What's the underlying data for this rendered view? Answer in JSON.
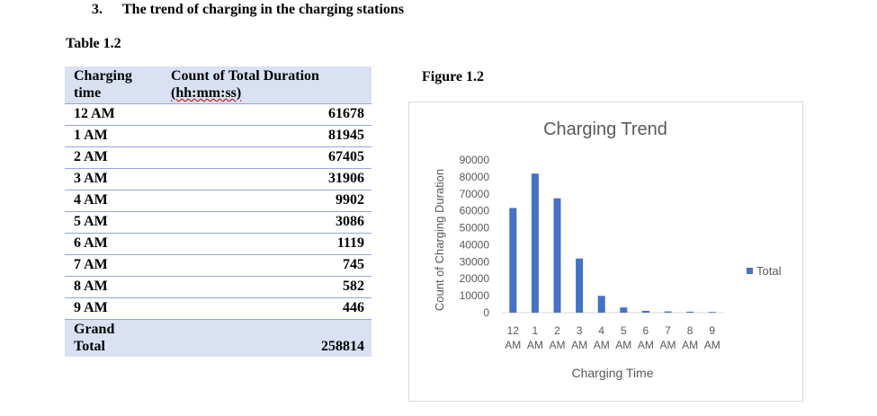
{
  "heading": {
    "number": "3.",
    "text": "The trend of charging in the charging stations"
  },
  "table": {
    "caption": "Table 1.2",
    "header": {
      "col1_line1": "Charging",
      "col1_line2": "time",
      "col2_line1": "Count of Total Duration",
      "col2_line2": "(hh:mm:ss)"
    },
    "rows": [
      {
        "label": "12 AM",
        "value": "61678"
      },
      {
        "label": "1 AM",
        "value": "81945"
      },
      {
        "label": "2 AM",
        "value": "67405"
      },
      {
        "label": "3 AM",
        "value": "31906"
      },
      {
        "label": "4 AM",
        "value": "9902"
      },
      {
        "label": "5 AM",
        "value": "3086"
      },
      {
        "label": "6 AM",
        "value": "1119"
      },
      {
        "label": "7 AM",
        "value": "745"
      },
      {
        "label": "8 AM",
        "value": "582"
      },
      {
        "label": "9 AM",
        "value": "446"
      }
    ],
    "total": {
      "label_line1": "Grand",
      "label_line2": "Total",
      "value": "258814"
    }
  },
  "figure": {
    "caption": "Figure 1.2"
  },
  "chart_data": {
    "type": "bar",
    "title": "Charging Trend",
    "xlabel": "Charging Time",
    "ylabel": "Count of Charging Duration",
    "categories": [
      "12 AM",
      "1 AM",
      "2 AM",
      "3 AM",
      "4 AM",
      "5 AM",
      "6 AM",
      "7 AM",
      "8 AM",
      "9 AM"
    ],
    "category_lines": [
      [
        "12",
        "AM"
      ],
      [
        "1",
        "AM"
      ],
      [
        "2",
        "AM"
      ],
      [
        "3",
        "AM"
      ],
      [
        "4",
        "AM"
      ],
      [
        "5",
        "AM"
      ],
      [
        "6",
        "AM"
      ],
      [
        "7",
        "AM"
      ],
      [
        "8",
        "AM"
      ],
      [
        "9",
        "AM"
      ]
    ],
    "series": [
      {
        "name": "Total",
        "values": [
          61678,
          81945,
          67405,
          31906,
          9902,
          3086,
          1119,
          745,
          582,
          446
        ],
        "color": "#4472c4"
      }
    ],
    "yticks": [
      0,
      10000,
      20000,
      30000,
      40000,
      50000,
      60000,
      70000,
      80000,
      90000
    ],
    "ylim": [
      0,
      90000
    ],
    "grid": false,
    "legend": "right"
  }
}
